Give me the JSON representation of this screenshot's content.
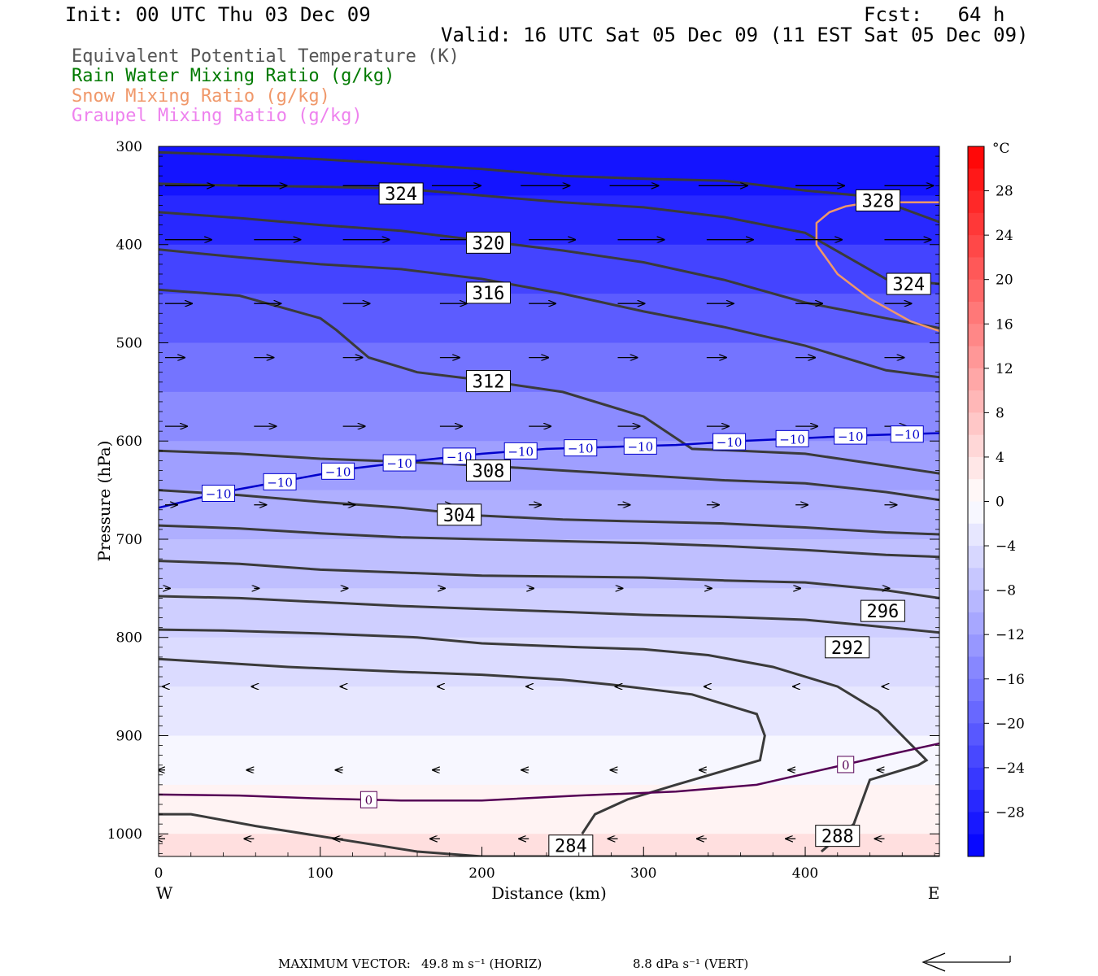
{
  "header": {
    "init": "Init: 00 UTC Thu 03 Dec 09",
    "fcst": "Fcst:   64 h",
    "valid": "Valid: 16 UTC Sat 05 Dec 09 (11 EST Sat 05 Dec 09)"
  },
  "legend": [
    {
      "label": "Equivalent Potential Temperature (K)",
      "color": "#555555"
    },
    {
      "label": "Rain Water Mixing Ratio (g/kg)",
      "color": "#007a00"
    },
    {
      "label": "Snow Mixing Ratio (g/kg)",
      "color": "#f0986a"
    },
    {
      "label": "Graupel Mixing Ratio (g/kg)",
      "color": "#ee82ee"
    }
  ],
  "footer": {
    "label": "MAXIMUM VECTOR:",
    "horiz": "49.8 m s⁻¹ (HORIZ)",
    "vert": "8.8 dPa s⁻¹ (VERT)"
  },
  "chart_data": {
    "type": "cross-section",
    "xlabel": "Distance (km)",
    "ylabel": "Pressure (hPa)",
    "x_ticks": [
      0,
      100,
      200,
      300,
      400
    ],
    "y_ticks": [
      300,
      400,
      500,
      600,
      700,
      800,
      900,
      1000
    ],
    "xlim": [
      0,
      483
    ],
    "ylim": [
      1023,
      300
    ],
    "left_end_label": "W",
    "right_end_label": "E",
    "colorbar": {
      "unit": "°C",
      "labels": [
        "28",
        "24",
        "20",
        "16",
        "12",
        "8",
        "4",
        "0",
        "−4",
        "−8",
        "−12",
        "−16",
        "−20",
        "−24",
        "−28"
      ],
      "values": [
        28,
        24,
        20,
        16,
        12,
        8,
        4,
        0,
        -4,
        -8,
        -12,
        -16,
        -20,
        -24,
        -28
      ],
      "min": -32,
      "max": 32,
      "step": 2
    },
    "theta_e_contours": [
      {
        "label": "284",
        "x": [
          0,
          20,
          60,
          110,
          160,
          200,
          240,
          300,
          360,
          420,
          483
        ],
        "p": [
          980,
          980,
          992,
          1005,
          1018,
          1023,
          1023,
          1023,
          1023,
          1023,
          1023
        ]
      },
      {
        "label": "288",
        "x": [
          0,
          30,
          80,
          150,
          200,
          250,
          280,
          330,
          370,
          375,
          372,
          320,
          290,
          270,
          262
        ],
        "p": [
          822,
          825,
          830,
          835,
          838,
          843,
          848,
          858,
          878,
          900,
          925,
          950,
          965,
          980,
          1000
        ]
      },
      {
        "label": "292",
        "x": [
          0,
          40,
          100,
          160,
          200,
          260,
          300,
          340,
          380,
          420,
          445,
          475,
          470,
          440,
          430,
          410
        ],
        "p": [
          792,
          793,
          796,
          800,
          806,
          810,
          812,
          818,
          830,
          850,
          875,
          925,
          930,
          945,
          990,
          1018
        ]
      },
      {
        "label": "296",
        "x": [
          0,
          50,
          100,
          150,
          200,
          250,
          300,
          350,
          400,
          440,
          483
        ],
        "p": [
          758,
          760,
          764,
          768,
          771,
          774,
          777,
          779,
          782,
          788,
          795
        ]
      },
      {
        "label": "",
        "x": [
          0,
          50,
          100,
          150,
          200,
          250,
          300,
          350,
          400,
          450,
          483
        ],
        "p": [
          722,
          725,
          731,
          734,
          737,
          738,
          739,
          742,
          744,
          752,
          760
        ]
      },
      {
        "label": "",
        "x": [
          0,
          50,
          100,
          150,
          200,
          250,
          300,
          350,
          400,
          450,
          483
        ],
        "p": [
          686,
          689,
          694,
          698,
          700,
          702,
          704,
          707,
          711,
          716,
          718
        ]
      },
      {
        "label": "304",
        "x": [
          0,
          50,
          100,
          150,
          200,
          250,
          300,
          350,
          400,
          450,
          483
        ],
        "p": [
          650,
          655,
          662,
          668,
          676,
          680,
          682,
          684,
          688,
          693,
          695
        ]
      },
      {
        "label": "308",
        "x": [
          0,
          50,
          100,
          150,
          200,
          250,
          300,
          350,
          400,
          450,
          483
        ],
        "p": [
          610,
          613,
          618,
          621,
          625,
          630,
          635,
          640,
          643,
          652,
          660
        ]
      },
      {
        "label": "312",
        "x": [
          0,
          50,
          100,
          110,
          130,
          160,
          200,
          250,
          300,
          330,
          360,
          400,
          450,
          483
        ],
        "p": [
          446,
          452,
          475,
          487,
          515,
          530,
          538,
          550,
          575,
          608,
          610,
          613,
          625,
          633
        ]
      },
      {
        "label": "316",
        "x": [
          0,
          50,
          100,
          150,
          200,
          250,
          300,
          350,
          400,
          450,
          483
        ],
        "p": [
          405,
          413,
          420,
          425,
          435,
          450,
          468,
          484,
          503,
          528,
          535
        ]
      },
      {
        "label": "320",
        "x": [
          0,
          50,
          100,
          150,
          200,
          250,
          300,
          350,
          400,
          450,
          483
        ],
        "p": [
          367,
          373,
          380,
          386,
          396,
          406,
          418,
          436,
          459,
          475,
          485
        ]
      },
      {
        "label": "324",
        "x": [
          0,
          50,
          100,
          150,
          200,
          250,
          300,
          350,
          400,
          450,
          483
        ],
        "p": [
          338,
          340,
          341,
          343,
          350,
          357,
          362,
          372,
          388,
          435,
          440
        ]
      },
      {
        "label": "328",
        "x": [
          0,
          50,
          100,
          150,
          200,
          250,
          300,
          350,
          400,
          440,
          483
        ],
        "p": [
          306,
          309,
          313,
          318,
          323,
          330,
          333,
          335,
          345,
          351,
          377
        ]
      }
    ],
    "theta_e_label_positions": [
      {
        "label": "284",
        "x": 255,
        "p": 1012
      },
      {
        "label": "288",
        "x": 420,
        "p": 1002
      },
      {
        "label": "292",
        "x": 426,
        "p": 810
      },
      {
        "label": "296",
        "x": 448,
        "p": 773
      },
      {
        "label": "304",
        "x": 186,
        "p": 675
      },
      {
        "label": "308",
        "x": 204,
        "p": 630
      },
      {
        "label": "312",
        "x": 204,
        "p": 539
      },
      {
        "label": "316",
        "x": 204,
        "p": 449
      },
      {
        "label": "320",
        "x": 204,
        "p": 398
      },
      {
        "label": "324",
        "x": 150,
        "p": 348
      },
      {
        "label": "324",
        "x": 464,
        "p": 440
      },
      {
        "label": "328",
        "x": 445,
        "p": 355
      }
    ],
    "isotherms": [
      {
        "value": -10,
        "label": "−10",
        "color": "#0000cc",
        "x": [
          0,
          40,
          80,
          120,
          160,
          200,
          240,
          280,
          320,
          360,
          400,
          440,
          483
        ],
        "p": [
          668,
          652,
          640,
          628,
          620,
          613,
          608,
          606,
          604,
          600,
          597,
          594,
          592
        ],
        "label_x": [
          37,
          75,
          111,
          149,
          186,
          224,
          261,
          298,
          353,
          392,
          428,
          463
        ]
      },
      {
        "value": 0,
        "label": "0",
        "color": "#550055",
        "x": [
          0,
          50,
          100,
          150,
          200,
          260,
          320,
          370,
          410,
          450,
          483
        ],
        "p": [
          960,
          961,
          964,
          966,
          966,
          961,
          957,
          950,
          935,
          920,
          908
        ],
        "label_x": [
          130,
          425
        ]
      }
    ],
    "snow_contour": {
      "color": "#f0986a",
      "x": [
        483,
        460,
        440,
        425,
        415,
        407,
        407,
        420,
        440,
        465,
        483
      ],
      "p": [
        357,
        357,
        357,
        361,
        367,
        378,
        400,
        430,
        455,
        478,
        488
      ]
    },
    "wind_vectors": [
      {
        "p": 340,
        "xs": [
          0,
          45,
          110,
          165,
          220,
          275,
          330,
          390,
          445
        ],
        "u": 1.0
      },
      {
        "p": 395,
        "xs": [
          0,
          55,
          110,
          170,
          225,
          280,
          335,
          390,
          445
        ],
        "u": 0.95
      },
      {
        "p": 460,
        "xs": [
          0,
          55,
          110,
          170,
          225,
          280,
          335,
          390,
          445
        ],
        "u": 0.55
      },
      {
        "p": 515,
        "xs": [
          0,
          55,
          110,
          170,
          225,
          280,
          335,
          390,
          445
        ],
        "u": 0.4
      },
      {
        "p": 585,
        "xs": [
          0,
          55,
          110,
          170,
          225,
          280,
          335,
          390,
          445
        ],
        "u": 0.45
      },
      {
        "p": 665,
        "xs": [
          0,
          55,
          110,
          170,
          225,
          280,
          335,
          390,
          445
        ],
        "u": 0.25
      },
      {
        "p": 750,
        "xs": [
          0,
          55,
          110,
          170,
          225,
          280,
          335,
          390,
          445
        ],
        "u": 0.1
      },
      {
        "p": 850,
        "xs": [
          0,
          55,
          110,
          170,
          225,
          280,
          335,
          390,
          445
        ],
        "u": -0.05
      },
      {
        "p": 935,
        "xs": [
          0,
          55,
          110,
          170,
          225,
          280,
          335,
          390,
          445
        ],
        "u": -0.15
      },
      {
        "p": 1005,
        "xs": [
          0,
          55,
          110,
          170,
          225,
          280,
          335,
          390,
          445
        ],
        "u": -0.2
      }
    ],
    "shading_pressure_temps": [
      {
        "p": 300,
        "t": -30
      },
      {
        "p": 350,
        "t": -29
      },
      {
        "p": 400,
        "t": -25
      },
      {
        "p": 450,
        "t": -22
      },
      {
        "p": 500,
        "t": -19
      },
      {
        "p": 550,
        "t": -16
      },
      {
        "p": 600,
        "t": -13
      },
      {
        "p": 650,
        "t": -11
      },
      {
        "p": 700,
        "t": -9
      },
      {
        "p": 750,
        "t": -7
      },
      {
        "p": 800,
        "t": -5
      },
      {
        "p": 850,
        "t": -4
      },
      {
        "p": 900,
        "t": -2
      },
      {
        "p": 950,
        "t": 0
      },
      {
        "p": 1000,
        "t": 3
      },
      {
        "p": 1023,
        "t": 5
      }
    ]
  }
}
